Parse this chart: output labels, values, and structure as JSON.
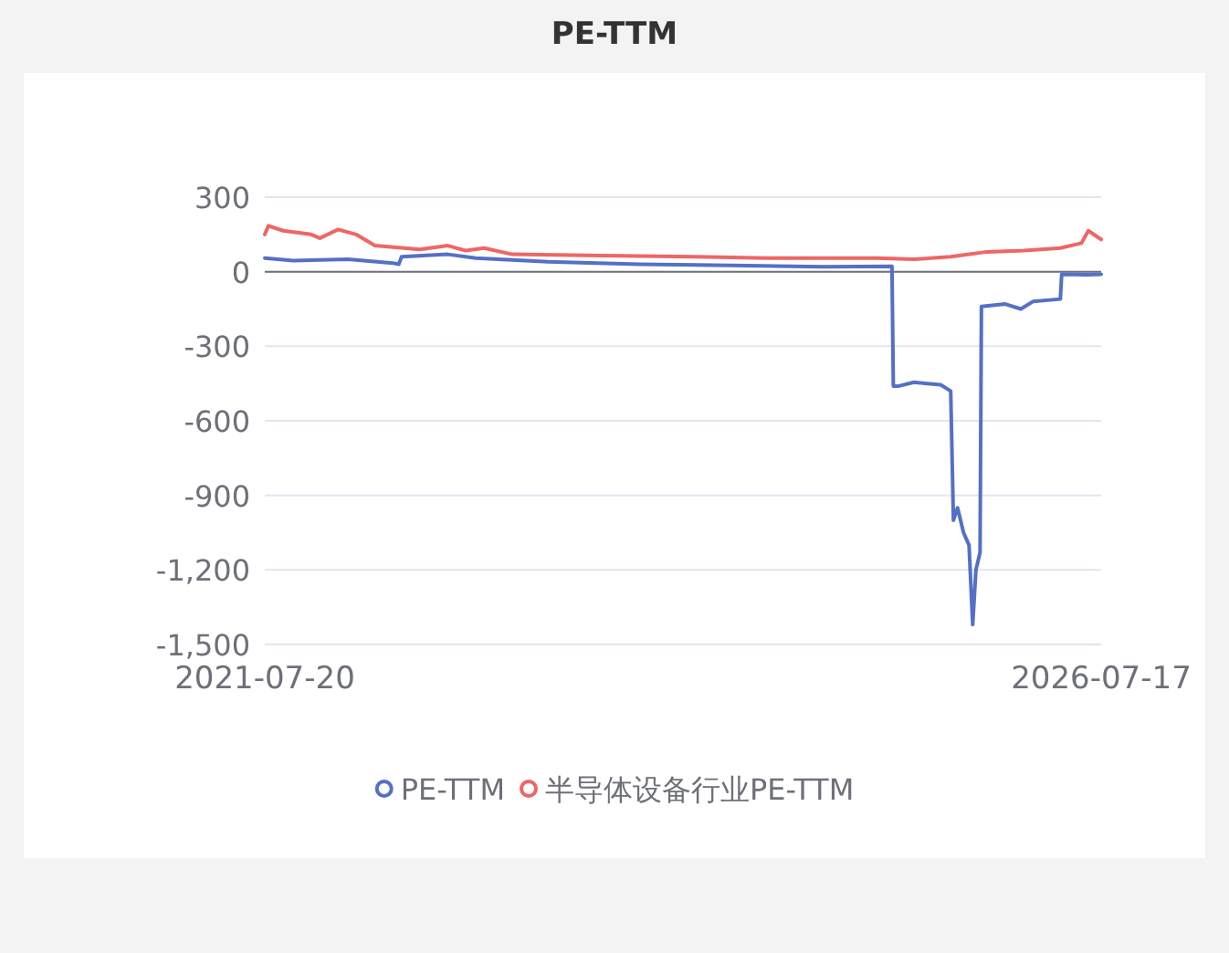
{
  "chart_data": {
    "type": "line",
    "title": "PE-TTM",
    "xlim": [
      "2021-07-20",
      "2026-07-17"
    ],
    "xticks": [
      {
        "value": "2021-07-20",
        "label": "2021-07-20"
      },
      {
        "value": "2026-07-17",
        "label": "2026-07-17"
      }
    ],
    "ylim": [
      -1500,
      300
    ],
    "yticks": [
      {
        "value": -1500,
        "label": "-1,500"
      },
      {
        "value": -1200,
        "label": "-1,200"
      },
      -900,
      -600,
      -300,
      0,
      300
    ],
    "grid": "y",
    "legend": "bottom",
    "line_style": "solid",
    "series": [
      {
        "name": "PE-TTM",
        "color": "#5470c6",
        "x": [
          "2021-07-20",
          "2021-09-20",
          "2022-01-17",
          "2022-04-25",
          "2022-05-08",
          "2022-05-14",
          "2022-08-23",
          "2022-10-23",
          "2023-03-29",
          "2023-10-14",
          "2024-05-01",
          "2024-11-17",
          "2025-04-17",
          "2025-04-20",
          "2025-05-02",
          "2025-06-04",
          "2025-08-01",
          "2025-08-23",
          "2025-08-29",
          "2025-09-07",
          "2025-09-20",
          "2025-10-02",
          "2025-10-10",
          "2025-10-17",
          "2025-10-26",
          "2025-10-29",
          "2025-12-20",
          "2026-01-23",
          "2026-02-18",
          "2026-04-19",
          "2026-04-22",
          "2026-06-16",
          "2026-07-17"
        ],
        "values": [
          55,
          45,
          50,
          35,
          30,
          60,
          70,
          55,
          40,
          30,
          25,
          20,
          22,
          -460,
          -460,
          -445,
          -455,
          -480,
          -1000,
          -950,
          -1050,
          -1100,
          -1420,
          -1200,
          -1130,
          -140,
          -130,
          -150,
          -120,
          -110,
          -10,
          -12,
          -10
        ]
      },
      {
        "name": "半导体设备行业PE-TTM",
        "color": "#ee6666",
        "x": [
          "2021-07-20",
          "2021-07-28",
          "2021-08-29",
          "2021-10-29",
          "2021-11-17",
          "2021-12-27",
          "2022-02-04",
          "2022-03-17",
          "2022-06-23",
          "2022-08-23",
          "2022-10-01",
          "2022-11-10",
          "2023-01-10",
          "2023-07-26",
          "2024-02-12",
          "2024-07-20",
          "2024-11-17",
          "2025-03-15",
          "2025-06-04",
          "2025-08-23",
          "2025-11-10",
          "2026-01-29",
          "2026-04-19",
          "2026-06-04",
          "2026-06-19",
          "2026-07-17"
        ],
        "values": [
          150,
          185,
          165,
          150,
          135,
          170,
          150,
          105,
          90,
          105,
          85,
          95,
          70,
          65,
          60,
          55,
          55,
          55,
          50,
          60,
          80,
          85,
          95,
          115,
          165,
          130
        ]
      }
    ]
  }
}
